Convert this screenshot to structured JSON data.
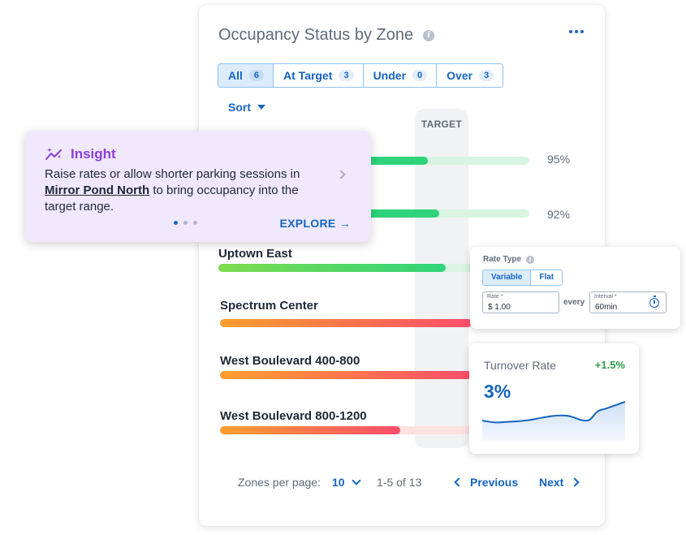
{
  "card": {
    "title": "Occupancy Status by Zone",
    "more_icon": "more-horizontal-icon"
  },
  "filters": [
    {
      "label": "At Target",
      "count": "3"
    },
    {
      "label": "Under",
      "count": "0"
    },
    {
      "label": "Over",
      "count": "3"
    }
  ],
  "filter_all": {
    "label": "All",
    "count": "6"
  },
  "sort_label": "Sort",
  "target_label": "TARGET",
  "zones": [
    {
      "name": "",
      "percent": "95%",
      "occupancy": 0.95,
      "color": "#2ecc71"
    },
    {
      "name": "",
      "percent": "92%",
      "occupancy": 0.92,
      "color": "#2ecc71"
    },
    {
      "name": "Uptown East",
      "percent": "",
      "occupancy": 0.81,
      "color": "#3ddc63"
    },
    {
      "name": "Spectrum Center",
      "percent": "",
      "occupancy": 0.9,
      "color": "#ff4d4d"
    },
    {
      "name": "West Boulevard 400-800",
      "percent": "",
      "occupancy": 0.9,
      "color": "#ff4d4d"
    },
    {
      "name": "West Boulevard 800-1200",
      "percent": "",
      "occupancy": 0.7,
      "color": "#ff4d4d"
    }
  ],
  "pagination": {
    "per_page_label": "Zones per page:",
    "per_page_value": "10",
    "range": "1-5 of 13",
    "previous": "Previous",
    "next": "Next"
  },
  "insight": {
    "title": "Insight",
    "text_before": "Raise rates or allow shorter parking sessions in",
    "zone_link": "Mirror Pond North",
    "text_after": "to bring occupancy into the target range.",
    "explore": "EXPLORE →"
  },
  "rate_card": {
    "label": "Rate Type",
    "options": {
      "variable": "Variable",
      "flat": "Flat"
    },
    "rate_label": "Rate *",
    "rate_value": "$ 1.00",
    "every": "every",
    "interval_label": "Interval *",
    "interval_value": "60min"
  },
  "turnover": {
    "title": "Turnover Rate",
    "delta": "+1.5%",
    "value": "3%"
  }
}
